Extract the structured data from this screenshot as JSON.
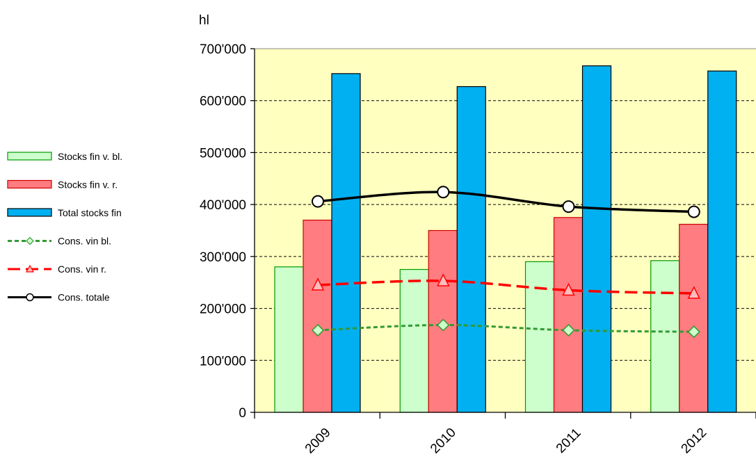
{
  "chart_data": {
    "type": "bar",
    "unit_label": "hl",
    "categories": [
      "2009",
      "2010",
      "2011",
      "2012"
    ],
    "ylim": [
      0,
      700000
    ],
    "y_ticks": [
      "0",
      "100'000",
      "200'000",
      "300'000",
      "400'000",
      "500'000",
      "600'000",
      "700'000"
    ],
    "grid": true,
    "legend_position": "left",
    "series": [
      {
        "name": "Stocks fin v. bl.",
        "kind": "bar",
        "color": "#ccffcc",
        "stroke": "#009900",
        "values": [
          280000,
          275000,
          290000,
          292000
        ]
      },
      {
        "name": "Stocks fin v. r.",
        "kind": "bar",
        "color": "#ff7c80",
        "stroke": "#cc0000",
        "values": [
          370000,
          350000,
          375000,
          362000
        ]
      },
      {
        "name": "Total stocks fin",
        "kind": "bar",
        "color": "#00b0f0",
        "stroke": "#000000",
        "values": [
          652000,
          627000,
          667000,
          657000
        ]
      },
      {
        "name": "Cons. vin bl.",
        "kind": "line",
        "color": "#339933",
        "marker": "diamond",
        "dash": "short",
        "values": [
          158000,
          168000,
          158000,
          155000
        ]
      },
      {
        "name": "Cons. vin r.",
        "kind": "line",
        "color": "#ff0000",
        "marker": "triangle",
        "dash": "long",
        "values": [
          245000,
          253000,
          235000,
          229000
        ]
      },
      {
        "name": "Cons. totale",
        "kind": "line",
        "color": "#000000",
        "marker": "circle",
        "dash": "solid",
        "values": [
          406000,
          424000,
          396000,
          386000
        ]
      }
    ]
  }
}
